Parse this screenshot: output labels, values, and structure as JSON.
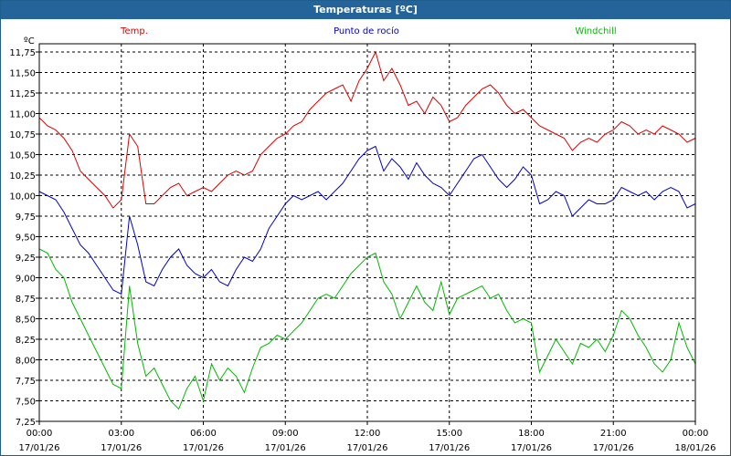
{
  "window": {
    "title": "Temperaturas [ºC]"
  },
  "chart_data": {
    "type": "line",
    "title": "Temperaturas [ºC]",
    "ylabel": "ºC",
    "xlabel": "",
    "ylim": [
      7.25,
      11.85
    ],
    "xlim": [
      0,
      24
    ],
    "grid": true,
    "legend_placement": "top",
    "y_ticks": [
      "11,75",
      "11,50",
      "11,25",
      "11,00",
      "10,75",
      "10,50",
      "10,25",
      "10,00",
      "9,75",
      "9,50",
      "9,25",
      "9,00",
      "8,75",
      "8,50",
      "8,25",
      "8,00",
      "7,75",
      "7,50",
      "7,25"
    ],
    "x_ticks": [
      {
        "time": "00:00",
        "date": "17/01/26"
      },
      {
        "time": "03:00",
        "date": "17/01/26"
      },
      {
        "time": "06:00",
        "date": "17/01/26"
      },
      {
        "time": "09:00",
        "date": "17/01/26"
      },
      {
        "time": "12:00",
        "date": "17/01/26"
      },
      {
        "time": "15:00",
        "date": "17/01/26"
      },
      {
        "time": "18:00",
        "date": "17/01/26"
      },
      {
        "time": "21:00",
        "date": "17/01/26"
      },
      {
        "time": "00:00",
        "date": "18/01/26"
      }
    ],
    "series": [
      {
        "name": "Temp.",
        "color": "#dd0000",
        "x": [
          0,
          0.3,
          0.6,
          0.9,
          1.2,
          1.5,
          1.8,
          2.1,
          2.4,
          2.7,
          3.0,
          3.3,
          3.6,
          3.9,
          4.2,
          4.5,
          4.8,
          5.1,
          5.4,
          5.7,
          6.0,
          6.3,
          6.6,
          6.9,
          7.2,
          7.5,
          7.8,
          8.1,
          8.4,
          8.7,
          9.0,
          9.3,
          9.6,
          9.9,
          10.2,
          10.5,
          10.8,
          11.1,
          11.4,
          11.7,
          12.0,
          12.3,
          12.6,
          12.9,
          13.2,
          13.5,
          13.8,
          14.1,
          14.4,
          14.7,
          15.0,
          15.3,
          15.6,
          15.9,
          16.2,
          16.5,
          16.8,
          17.1,
          17.4,
          17.7,
          18.0,
          18.3,
          18.6,
          18.9,
          19.2,
          19.5,
          19.8,
          20.1,
          20.4,
          20.7,
          21.0,
          21.3,
          21.6,
          21.9,
          22.2,
          22.5,
          22.8,
          23.1,
          23.4,
          23.7,
          24.0
        ],
        "values": [
          10.95,
          10.85,
          10.8,
          10.7,
          10.55,
          10.3,
          10.2,
          10.1,
          10.0,
          9.85,
          9.95,
          10.75,
          10.6,
          9.9,
          9.9,
          10.0,
          10.1,
          10.15,
          10.0,
          10.05,
          10.1,
          10.05,
          10.15,
          10.25,
          10.3,
          10.25,
          10.3,
          10.5,
          10.6,
          10.7,
          10.75,
          10.85,
          10.9,
          11.05,
          11.15,
          11.25,
          11.3,
          11.35,
          11.15,
          11.4,
          11.55,
          11.75,
          11.4,
          11.55,
          11.35,
          11.1,
          11.15,
          11.0,
          11.2,
          11.1,
          10.9,
          10.95,
          11.1,
          11.2,
          11.3,
          11.35,
          11.25,
          11.1,
          11.0,
          11.05,
          10.95,
          10.85,
          10.8,
          10.75,
          10.7,
          10.55,
          10.65,
          10.7,
          10.65,
          10.75,
          10.8,
          10.9,
          10.85,
          10.75,
          10.8,
          10.75,
          10.85,
          10.8,
          10.75,
          10.65,
          10.7
        ]
      },
      {
        "name": "Punto de rocío",
        "color": "#0000cc",
        "x": [
          0,
          0.3,
          0.6,
          0.9,
          1.2,
          1.5,
          1.8,
          2.1,
          2.4,
          2.7,
          3.0,
          3.3,
          3.6,
          3.9,
          4.2,
          4.5,
          4.8,
          5.1,
          5.4,
          5.7,
          6.0,
          6.3,
          6.6,
          6.9,
          7.2,
          7.5,
          7.8,
          8.1,
          8.4,
          8.7,
          9.0,
          9.3,
          9.6,
          9.9,
          10.2,
          10.5,
          10.8,
          11.1,
          11.4,
          11.7,
          12.0,
          12.3,
          12.6,
          12.9,
          13.2,
          13.5,
          13.8,
          14.1,
          14.4,
          14.7,
          15.0,
          15.3,
          15.6,
          15.9,
          16.2,
          16.5,
          16.8,
          17.1,
          17.4,
          17.7,
          18.0,
          18.3,
          18.6,
          18.9,
          19.2,
          19.5,
          19.8,
          20.1,
          20.4,
          20.7,
          21.0,
          21.3,
          21.6,
          21.9,
          22.2,
          22.5,
          22.8,
          23.1,
          23.4,
          23.7,
          24.0
        ],
        "values": [
          10.05,
          10.0,
          9.95,
          9.8,
          9.6,
          9.4,
          9.3,
          9.15,
          9.0,
          8.85,
          8.8,
          9.75,
          9.4,
          8.95,
          8.9,
          9.1,
          9.25,
          9.35,
          9.15,
          9.05,
          9.0,
          9.1,
          8.95,
          8.9,
          9.1,
          9.25,
          9.2,
          9.35,
          9.6,
          9.75,
          9.9,
          10.0,
          9.95,
          10.0,
          10.05,
          9.95,
          10.05,
          10.15,
          10.3,
          10.45,
          10.55,
          10.6,
          10.3,
          10.45,
          10.35,
          10.2,
          10.4,
          10.25,
          10.15,
          10.1,
          10.0,
          10.15,
          10.3,
          10.45,
          10.5,
          10.35,
          10.2,
          10.1,
          10.2,
          10.35,
          10.25,
          9.9,
          9.95,
          10.05,
          10.0,
          9.75,
          9.85,
          9.95,
          9.9,
          9.9,
          9.95,
          10.1,
          10.05,
          10.0,
          10.05,
          9.95,
          10.05,
          10.1,
          10.05,
          9.85,
          9.9
        ]
      },
      {
        "name": "Windchill",
        "color": "#00bb00",
        "x": [
          0,
          0.3,
          0.6,
          0.9,
          1.2,
          1.5,
          1.8,
          2.1,
          2.4,
          2.7,
          3.0,
          3.3,
          3.6,
          3.9,
          4.2,
          4.5,
          4.8,
          5.1,
          5.4,
          5.7,
          6.0,
          6.3,
          6.6,
          6.9,
          7.2,
          7.5,
          7.8,
          8.1,
          8.4,
          8.7,
          9.0,
          9.3,
          9.6,
          9.9,
          10.2,
          10.5,
          10.8,
          11.1,
          11.4,
          11.7,
          12.0,
          12.3,
          12.6,
          12.9,
          13.2,
          13.5,
          13.8,
          14.1,
          14.4,
          14.7,
          15.0,
          15.3,
          15.6,
          15.9,
          16.2,
          16.5,
          16.8,
          17.1,
          17.4,
          17.7,
          18.0,
          18.3,
          18.6,
          18.9,
          19.2,
          19.5,
          19.8,
          20.1,
          20.4,
          20.7,
          21.0,
          21.3,
          21.6,
          21.9,
          22.2,
          22.5,
          22.8,
          23.1,
          23.4,
          23.7,
          24.0
        ],
        "values": [
          9.35,
          9.3,
          9.1,
          9.0,
          8.7,
          8.5,
          8.3,
          8.1,
          7.9,
          7.7,
          7.65,
          8.9,
          8.2,
          7.8,
          7.9,
          7.7,
          7.5,
          7.4,
          7.65,
          7.8,
          7.5,
          7.95,
          7.75,
          7.9,
          7.8,
          7.6,
          7.9,
          8.15,
          8.2,
          8.3,
          8.25,
          8.35,
          8.45,
          8.6,
          8.75,
          8.8,
          8.75,
          8.9,
          9.05,
          9.15,
          9.25,
          9.3,
          8.95,
          8.8,
          8.5,
          8.7,
          8.9,
          8.7,
          8.6,
          8.95,
          8.55,
          8.75,
          8.8,
          8.85,
          8.9,
          8.75,
          8.8,
          8.6,
          8.45,
          8.5,
          8.45,
          7.85,
          8.05,
          8.25,
          8.1,
          7.95,
          8.2,
          8.15,
          8.25,
          8.1,
          8.3,
          8.6,
          8.5,
          8.3,
          8.15,
          7.95,
          7.85,
          8.0,
          8.45,
          8.15,
          7.95
        ]
      }
    ]
  }
}
